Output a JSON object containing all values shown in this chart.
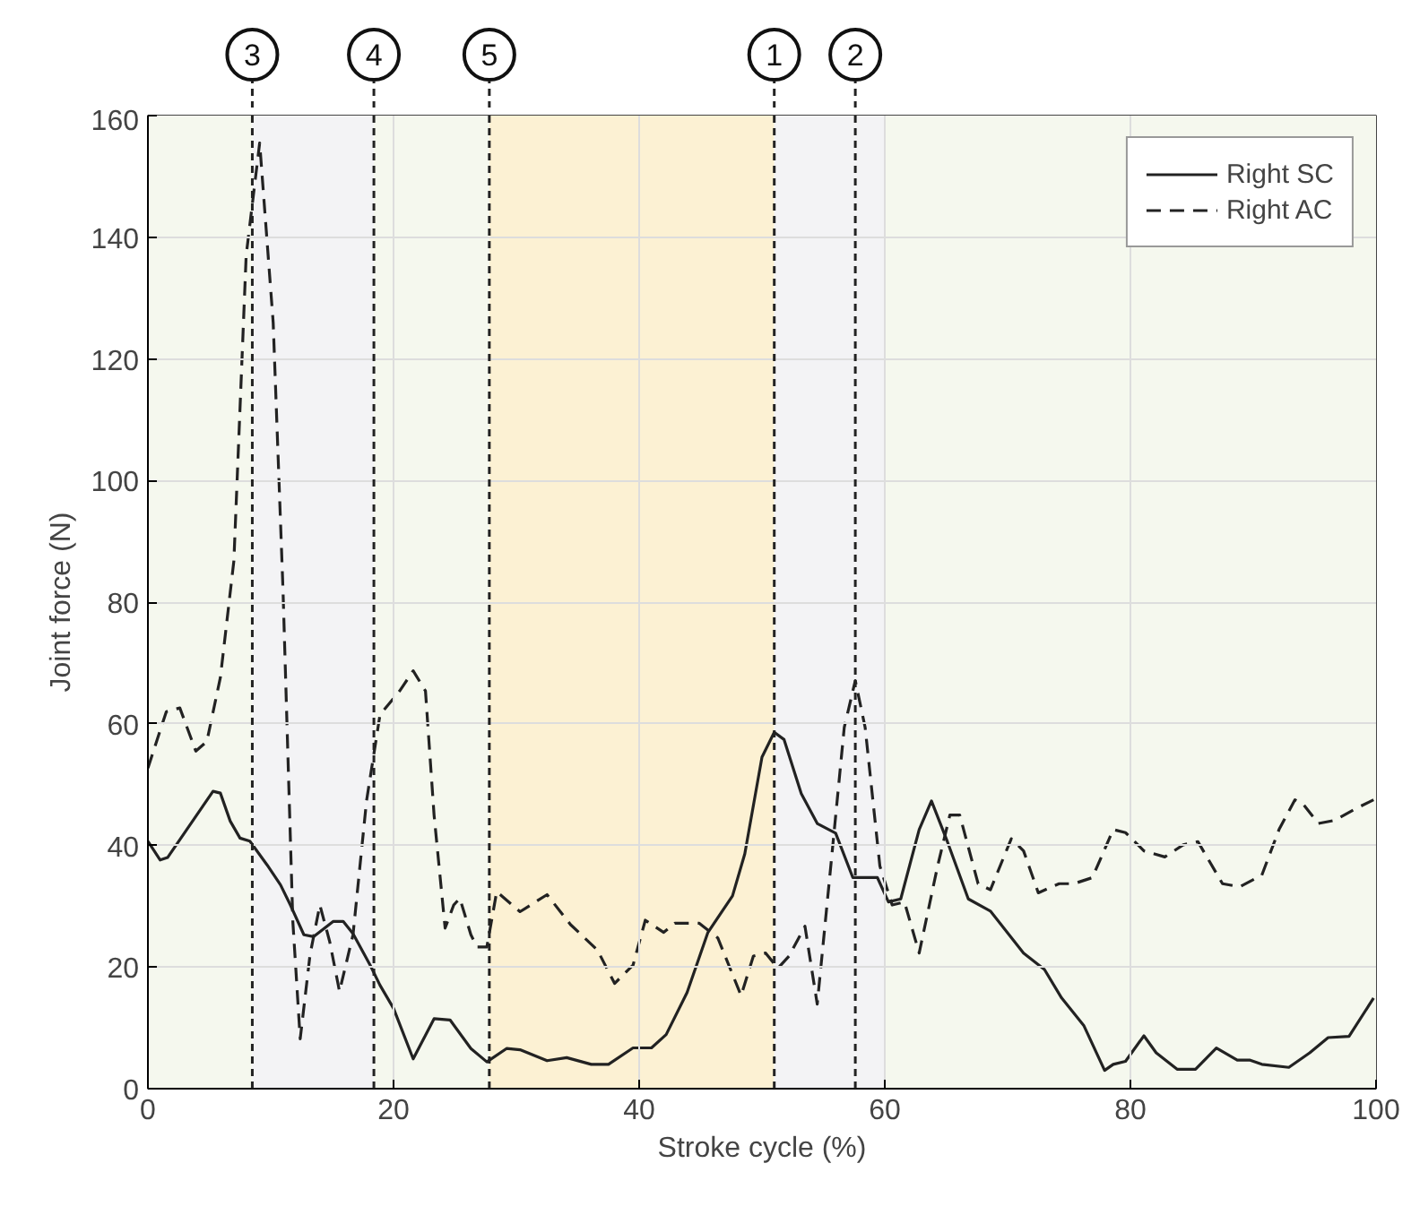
{
  "chart_data": {
    "type": "line",
    "xlabel": "Stroke cycle (%)",
    "ylabel": "Joint force (N)",
    "xlim": [
      0,
      100
    ],
    "ylim": [
      0,
      160
    ],
    "xticks": [
      0,
      20,
      40,
      60,
      80,
      100
    ],
    "yticks": [
      0,
      20,
      40,
      60,
      80,
      100,
      120,
      140,
      160
    ],
    "grid": true,
    "legend": "top right",
    "series": [
      {
        "name": "Right SC",
        "color": "#222222",
        "line_style": "solid",
        "x": [
          0,
          1,
          1.6,
          5.3,
          5.9,
          6.7,
          7.5,
          8.3,
          9.7,
          10.8,
          11.6,
          12.7,
          13.5,
          15.1,
          15.9,
          16.7,
          18.1,
          18.9,
          20,
          21.6,
          23.3,
          24.6,
          26.3,
          27.6,
          29.2,
          30.3,
          32.5,
          34.1,
          36.1,
          37.5,
          39.5,
          41,
          42.2,
          43.9,
          45.6,
          47.6,
          48.6,
          50,
          51,
          51.8,
          53.2,
          54.5,
          56,
          57.4,
          59.4,
          60.3,
          61.3,
          62.8,
          63.8,
          65.1,
          66.8,
          68.6,
          71.3,
          73,
          74.4,
          76.2,
          77.9,
          78.6,
          79.6,
          81.1,
          82.1,
          83.8,
          85.3,
          87,
          88.7,
          89.7,
          90.7,
          92.9,
          94.6,
          96.1,
          97.8,
          99.8
        ],
        "values": [
          40.7,
          37.6,
          38,
          48.9,
          48.6,
          44,
          41.2,
          40.7,
          36.8,
          33.5,
          30.2,
          25.3,
          25,
          27.5,
          27.5,
          25.5,
          20.3,
          17,
          13.2,
          4.9,
          11.5,
          11.3,
          6.6,
          4.4,
          6.6,
          6.4,
          4.6,
          5.1,
          4,
          4,
          6.7,
          6.7,
          8.9,
          15.8,
          25.7,
          31.7,
          38.6,
          54.5,
          58.6,
          57.4,
          48.5,
          43.6,
          42,
          34.7,
          34.7,
          30.7,
          31.2,
          42.6,
          47.3,
          40.6,
          31.2,
          29.2,
          22.3,
          19.6,
          14.9,
          10.4,
          3,
          4,
          4.5,
          8.7,
          5.9,
          3.2,
          3.2,
          6.7,
          4.7,
          4.7,
          4,
          3.5,
          5.9,
          8.4,
          8.6,
          14.9
        ]
      },
      {
        "name": "Right AC",
        "color": "#222222",
        "line_style": "dashed",
        "x": [
          0,
          1.5,
          2.6,
          3.9,
          4.8,
          5.9,
          7,
          8,
          9.1,
          10.2,
          11,
          11.8,
          12.4,
          13.2,
          14,
          14.8,
          15.6,
          16.7,
          17.8,
          18.9,
          20.5,
          21.6,
          22.6,
          23.3,
          24.2,
          24.9,
          25.4,
          26.3,
          26.8,
          27.6,
          28.4,
          30.3,
          32.5,
          34.4,
          36.6,
          38,
          39.5,
          40.5,
          42,
          42.9,
          44.9,
          46.4,
          48.3,
          49.3,
          50.3,
          51.3,
          52.2,
          53.5,
          54.5,
          55.7,
          56.7,
          57.6,
          58.4,
          59.6,
          60.6,
          61.6,
          62.8,
          64.3,
          65.3,
          66.1,
          67.6,
          68.6,
          70.3,
          71.3,
          72.5,
          74.2,
          75.4,
          76.9,
          78.6,
          79.6,
          81.1,
          82.8,
          84.3,
          85.5,
          87.5,
          88.9,
          90.7,
          92.1,
          93.4,
          94.1,
          95.3,
          96.6,
          98.3,
          99.8
        ],
        "values": [
          52.7,
          62,
          62.6,
          55.5,
          57.1,
          67.6,
          86.8,
          137,
          155.5,
          126,
          82,
          27.5,
          8.2,
          22,
          30.2,
          24.2,
          16,
          25.3,
          47.3,
          61.5,
          65.4,
          68.7,
          65.4,
          45,
          26.4,
          30.2,
          31.3,
          25.3,
          23.3,
          23.3,
          32.4,
          29.1,
          31.9,
          27,
          22.8,
          17.3,
          20.3,
          27.7,
          25.7,
          27.2,
          27.2,
          24.8,
          15.3,
          21.8,
          22.3,
          19.8,
          21.8,
          26.7,
          13.9,
          38.6,
          59.4,
          67.1,
          59.4,
          36.6,
          30.2,
          30.7,
          22.3,
          36.6,
          45,
          45,
          33.7,
          32.7,
          41.1,
          39.1,
          32.2,
          33.7,
          33.7,
          34.7,
          42.6,
          42.1,
          39.1,
          38.1,
          40.1,
          40.6,
          33.7,
          33.2,
          35.1,
          42.6,
          47.5,
          46.7,
          43.6,
          44.1,
          46,
          47.5
        ]
      }
    ],
    "bands": [
      {
        "axis": "x",
        "from": 0,
        "to": 8.5,
        "color": "#f5f8ee"
      },
      {
        "axis": "x",
        "from": 8.5,
        "to": 18.4,
        "color": "#f3f3f5"
      },
      {
        "axis": "x",
        "from": 18.4,
        "to": 27.8,
        "color": "#f5f8ee"
      },
      {
        "axis": "x",
        "from": 27.8,
        "to": 51,
        "color": "#fcf1d3"
      },
      {
        "axis": "x",
        "from": 51,
        "to": 60,
        "color": "#f3f3f5"
      },
      {
        "axis": "x",
        "from": 60,
        "to": 100,
        "color": "#f5f8ee"
      }
    ],
    "ref_lines": [
      {
        "axis": "x",
        "value": 8.5,
        "line_style": "dashed"
      },
      {
        "axis": "x",
        "value": 18.4,
        "line_style": "dashed"
      },
      {
        "axis": "x",
        "value": 27.8,
        "line_style": "dashed"
      },
      {
        "axis": "x",
        "value": 51,
        "line_style": "dashed"
      },
      {
        "axis": "x",
        "value": 57.6,
        "line_style": "dashed"
      }
    ],
    "annotations": [
      {
        "text": "3",
        "x": 8.5,
        "y": 160
      },
      {
        "text": "4",
        "x": 18.4,
        "y": 160
      },
      {
        "text": "5",
        "x": 27.8,
        "y": 160
      },
      {
        "text": "1",
        "x": 51,
        "y": 160
      },
      {
        "text": "2",
        "x": 57.6,
        "y": 160
      }
    ]
  }
}
